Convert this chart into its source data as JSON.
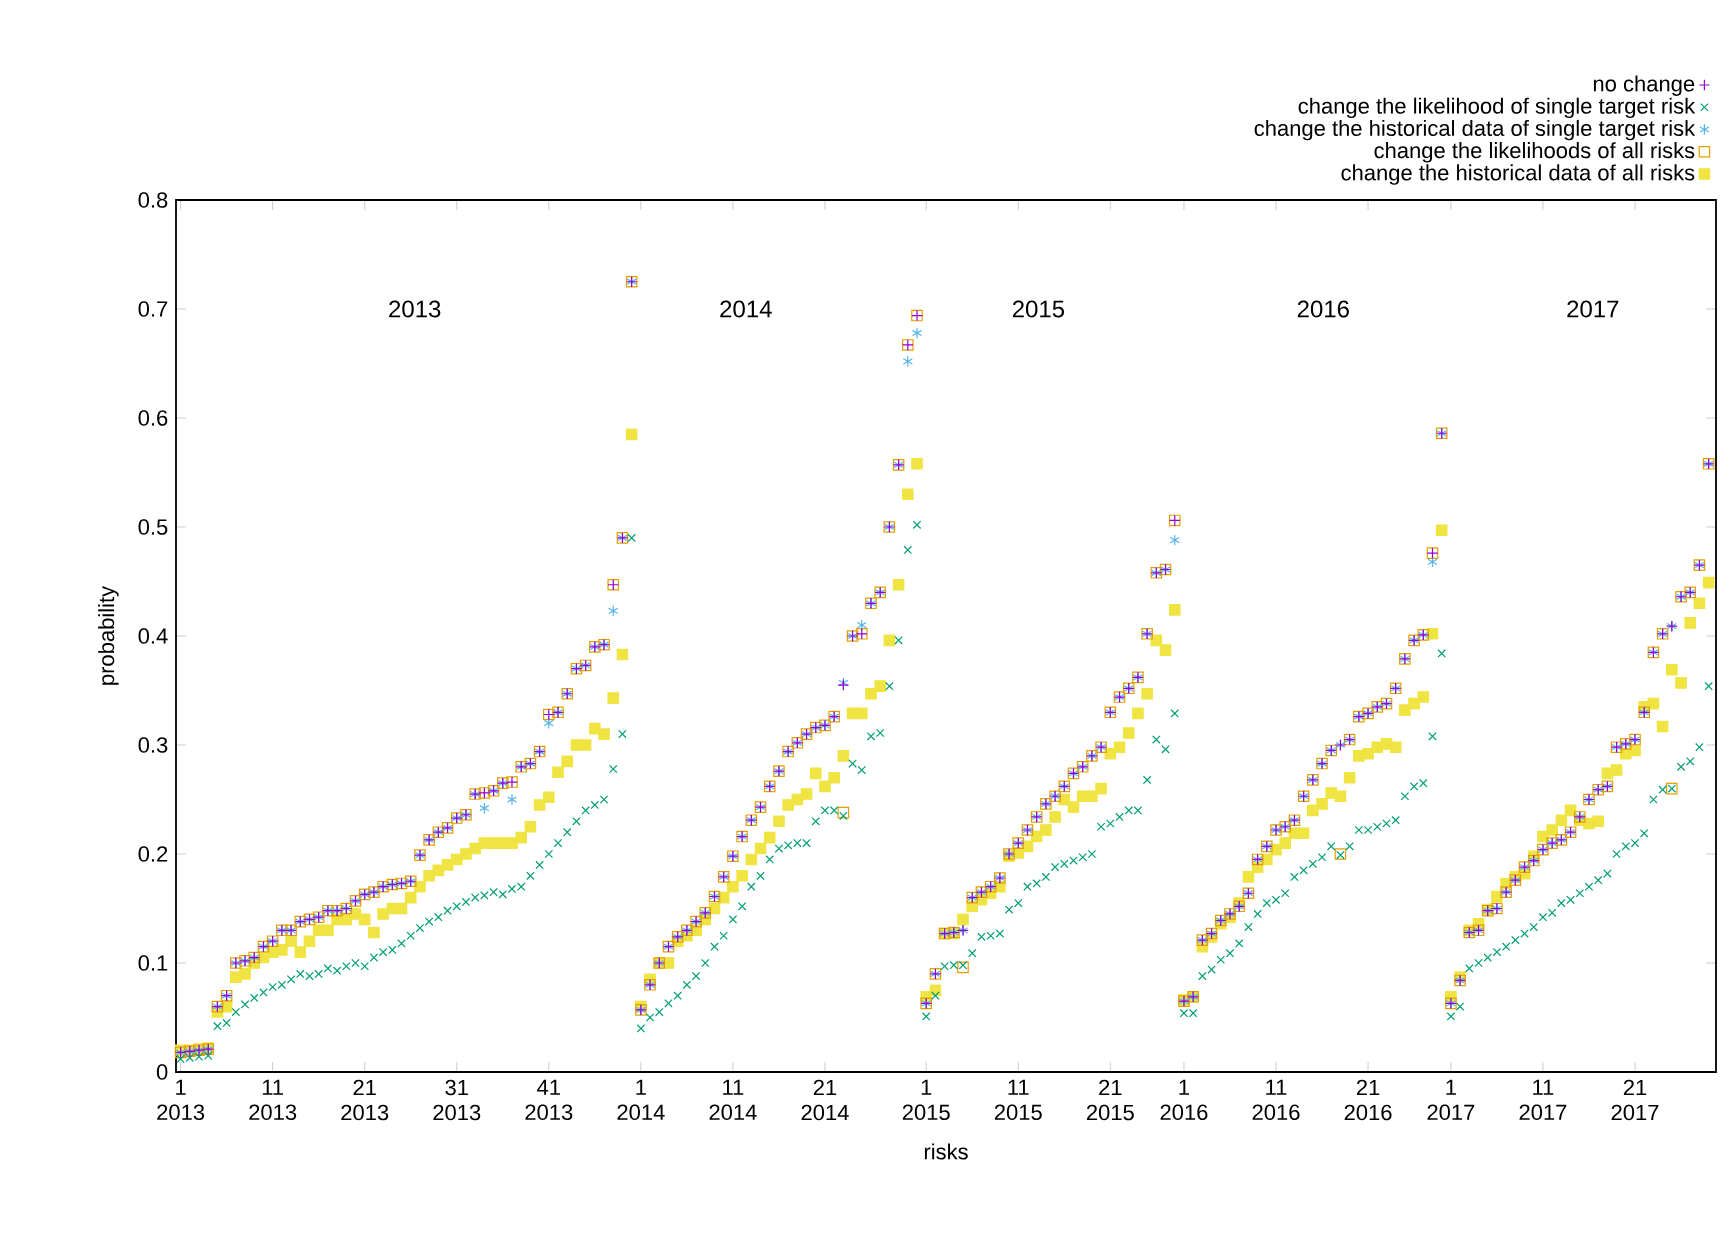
{
  "chart_data": {
    "type": "scatter",
    "xlabel": "risks",
    "ylabel": "probability",
    "ylim": [
      0,
      0.8
    ],
    "categories": [
      "1 2013",
      null,
      null,
      null,
      null,
      null,
      null,
      null,
      null,
      null,
      "11 2013",
      null,
      null,
      null,
      null,
      null,
      null,
      null,
      null,
      null,
      "21 2013",
      null,
      null,
      null,
      null,
      null,
      null,
      null,
      null,
      null,
      "31 2013",
      null,
      null,
      null,
      null,
      null,
      null,
      null,
      null,
      null,
      "41 2013",
      null,
      null,
      null,
      null,
      null,
      null,
      null,
      null,
      null,
      "1 2014",
      null,
      null,
      null,
      null,
      null,
      null,
      null,
      null,
      null,
      "11 2014",
      null,
      null,
      null,
      null,
      null,
      null,
      null,
      null,
      null,
      "21 2014",
      null,
      null,
      null,
      null,
      null,
      null,
      null,
      null,
      null,
      null,
      "1 2015",
      null,
      null,
      null,
      null,
      null,
      null,
      null,
      null,
      null,
      "11 2015",
      null,
      null,
      null,
      null,
      null,
      null,
      null,
      null,
      null,
      "21 2015",
      null,
      null,
      null,
      null,
      null,
      null,
      null,
      "1 2016",
      null,
      null,
      null,
      null,
      null,
      null,
      null,
      null,
      null,
      "11 2016",
      null,
      null,
      null,
      null,
      null,
      null,
      null,
      null,
      null,
      "21 2016",
      null,
      null,
      null,
      null,
      null,
      null,
      null,
      null,
      "1 2017",
      null,
      null,
      null,
      null,
      null,
      null,
      null,
      null,
      null,
      "11 2017",
      null,
      null,
      null,
      null,
      null,
      null,
      null,
      null,
      null,
      "21 2017",
      null,
      null,
      null,
      null,
      null,
      null,
      null,
      null
    ],
    "yticks": [
      0,
      0.1,
      0.2,
      0.3,
      0.4,
      0.5,
      0.6,
      0.7,
      0.8
    ],
    "legend": "top right",
    "annotations": [
      "2013",
      "2014",
      "2015",
      "2016",
      "2017"
    ],
    "series": [
      {
        "name": "no change",
        "color": "#9400d3",
        "marker": "plus",
        "values": [
          0.018,
          0.019,
          0.02,
          0.021,
          0.06,
          0.07,
          0.1,
          0.102,
          0.105,
          0.115,
          0.12,
          0.13,
          0.13,
          0.138,
          0.14,
          0.142,
          0.148,
          0.148,
          0.15,
          0.157,
          0.163,
          0.165,
          0.17,
          0.172,
          0.173,
          0.175,
          0.199,
          0.213,
          0.22,
          0.224,
          0.233,
          0.236,
          0.255,
          0.256,
          0.258,
          0.265,
          0.266,
          0.28,
          0.283,
          0.294,
          0.328,
          0.33,
          0.347,
          0.37,
          0.373,
          0.39,
          0.392,
          0.447,
          0.49,
          0.725,
          0.057,
          0.08,
          0.1,
          0.115,
          0.124,
          0.13,
          0.138,
          0.146,
          0.161,
          0.179,
          0.198,
          0.216,
          0.231,
          0.243,
          0.262,
          0.276,
          0.294,
          0.302,
          0.31,
          0.316,
          0.318,
          0.326,
          0.355,
          0.4,
          0.402,
          0.43,
          0.44,
          0.5,
          0.557,
          0.667,
          0.694,
          0.063,
          0.09,
          0.127,
          0.128,
          0.13,
          0.16,
          0.165,
          0.17,
          0.178,
          0.2,
          0.21,
          0.222,
          0.234,
          0.246,
          0.253,
          0.262,
          0.274,
          0.28,
          0.29,
          0.298,
          0.33,
          0.344,
          0.352,
          0.362,
          0.402,
          0.458,
          0.461,
          0.506,
          0.065,
          0.069,
          0.121,
          0.127,
          0.139,
          0.145,
          0.152,
          0.164,
          0.195,
          0.207,
          0.222,
          0.225,
          0.231,
          0.253,
          0.268,
          0.283,
          0.295,
          0.3,
          0.305,
          0.326,
          0.329,
          0.335,
          0.338,
          0.352,
          0.379,
          0.396,
          0.401,
          0.476,
          0.586,
          0.063,
          0.084,
          0.128,
          0.13,
          0.148,
          0.15,
          0.165,
          0.176,
          0.188,
          0.194,
          0.204,
          0.21,
          0.213,
          0.22,
          0.234,
          0.25,
          0.259,
          0.262,
          0.298,
          0.301,
          0.305,
          0.33,
          0.385,
          0.402,
          0.409,
          0.436,
          0.44,
          0.465,
          0.558
        ]
      },
      {
        "name": "change the likelihood of single target risk",
        "color": "#009e73",
        "marker": "cross",
        "values": [
          0.012,
          0.013,
          0.014,
          0.015,
          0.042,
          0.045,
          0.055,
          0.062,
          0.068,
          0.073,
          0.078,
          0.08,
          0.085,
          0.09,
          0.088,
          0.09,
          0.095,
          0.093,
          0.097,
          0.1,
          0.097,
          0.105,
          0.11,
          0.112,
          0.118,
          0.125,
          0.132,
          0.138,
          0.142,
          0.148,
          0.152,
          0.156,
          0.16,
          0.162,
          0.165,
          0.163,
          0.168,
          0.17,
          0.18,
          0.19,
          0.2,
          0.21,
          0.22,
          0.23,
          0.24,
          0.245,
          0.25,
          0.278,
          0.31,
          0.49,
          0.04,
          0.05,
          0.055,
          0.063,
          0.07,
          0.08,
          0.088,
          0.1,
          0.115,
          0.125,
          0.14,
          0.152,
          0.17,
          0.18,
          0.195,
          0.205,
          0.208,
          0.21,
          0.21,
          0.23,
          0.24,
          0.24,
          0.235,
          0.283,
          0.277,
          0.308,
          0.311,
          0.354,
          0.396,
          0.479,
          0.502,
          0.051,
          0.07,
          0.097,
          0.098,
          0.098,
          0.109,
          0.124,
          0.125,
          0.127,
          0.149,
          0.155,
          0.17,
          0.173,
          0.179,
          0.188,
          0.191,
          0.194,
          0.197,
          0.2,
          0.225,
          0.228,
          0.234,
          0.24,
          0.24,
          0.268,
          0.305,
          0.296,
          0.329,
          0.054,
          0.054,
          0.088,
          0.094,
          0.103,
          0.109,
          0.118,
          0.133,
          0.145,
          0.155,
          0.158,
          0.164,
          0.179,
          0.185,
          0.191,
          0.197,
          0.207,
          0.199,
          0.207,
          0.222,
          0.222,
          0.225,
          0.228,
          0.231,
          0.253,
          0.262,
          0.265,
          0.308,
          0.384,
          0.051,
          0.06,
          0.095,
          0.1,
          0.105,
          0.11,
          0.115,
          0.121,
          0.127,
          0.133,
          0.142,
          0.146,
          0.155,
          0.158,
          0.164,
          0.17,
          0.176,
          0.182,
          0.2,
          0.207,
          0.21,
          0.219,
          0.25,
          0.259,
          0.26,
          0.28,
          0.285,
          0.298,
          0.354
        ]
      },
      {
        "name": "change the historical data of single target risk",
        "color": "#56b4e9",
        "values": [
          0.018,
          0.019,
          0.02,
          0.021,
          0.06,
          0.07,
          0.1,
          0.102,
          0.105,
          0.115,
          0.12,
          0.13,
          0.13,
          0.138,
          0.14,
          0.142,
          0.148,
          0.148,
          0.15,
          0.157,
          0.163,
          0.165,
          0.17,
          0.172,
          0.173,
          0.175,
          0.199,
          0.213,
          0.22,
          0.224,
          0.233,
          0.236,
          0.255,
          0.242,
          0.258,
          0.265,
          0.25,
          0.28,
          0.283,
          0.294,
          0.32,
          0.33,
          0.347,
          0.37,
          0.373,
          0.39,
          0.392,
          0.423,
          0.49,
          0.725,
          0.057,
          0.08,
          0.1,
          0.115,
          0.124,
          0.13,
          0.138,
          0.146,
          0.161,
          0.179,
          0.198,
          0.216,
          0.231,
          0.243,
          0.262,
          0.276,
          0.294,
          0.302,
          0.31,
          0.316,
          0.318,
          0.326,
          0.357,
          0.4,
          0.41,
          0.43,
          0.44,
          0.5,
          0.557,
          0.652,
          0.678,
          0.063,
          0.09,
          0.127,
          0.128,
          0.13,
          0.16,
          0.165,
          0.17,
          0.178,
          0.2,
          0.21,
          0.222,
          0.234,
          0.246,
          0.253,
          0.262,
          0.274,
          0.28,
          0.29,
          0.298,
          0.33,
          0.344,
          0.352,
          0.362,
          0.402,
          0.458,
          0.461,
          0.488,
          0.065,
          0.069,
          0.121,
          0.127,
          0.139,
          0.145,
          0.152,
          0.164,
          0.195,
          0.207,
          0.222,
          0.225,
          0.231,
          0.253,
          0.268,
          0.283,
          0.295,
          0.3,
          0.305,
          0.326,
          0.329,
          0.335,
          0.338,
          0.352,
          0.379,
          0.396,
          0.401,
          0.468,
          0.586,
          0.063,
          0.084,
          0.128,
          0.13,
          0.148,
          0.15,
          0.165,
          0.176,
          0.188,
          0.194,
          0.204,
          0.21,
          0.213,
          0.22,
          0.234,
          0.25,
          0.259,
          0.262,
          0.298,
          0.301,
          0.305,
          0.33,
          0.385,
          0.402,
          0.409,
          0.436,
          0.44,
          0.465,
          0.558
        ]
      },
      {
        "name": "change the likelihoods of all risks",
        "color": "#e69f00",
        "marker": "square",
        "values": [
          0.018,
          0.019,
          0.02,
          0.021,
          0.06,
          0.07,
          0.1,
          0.102,
          0.105,
          0.115,
          0.12,
          0.13,
          0.13,
          0.138,
          0.14,
          0.142,
          0.148,
          0.148,
          0.15,
          0.157,
          0.163,
          0.165,
          0.17,
          0.172,
          0.173,
          0.175,
          0.199,
          0.213,
          0.22,
          0.224,
          0.233,
          0.236,
          0.255,
          0.256,
          0.258,
          0.265,
          0.266,
          0.28,
          0.283,
          0.294,
          0.328,
          0.33,
          0.347,
          0.37,
          0.373,
          0.39,
          0.392,
          0.447,
          0.49,
          0.725,
          0.057,
          0.08,
          0.1,
          0.115,
          0.124,
          0.13,
          0.138,
          0.146,
          0.161,
          0.179,
          0.198,
          0.216,
          0.231,
          0.243,
          0.262,
          0.276,
          0.294,
          0.302,
          0.31,
          0.316,
          0.318,
          0.326,
          0.238,
          0.4,
          0.402,
          0.43,
          0.44,
          0.5,
          0.557,
          0.667,
          0.694,
          0.063,
          0.09,
          0.127,
          0.128,
          0.096,
          0.16,
          0.165,
          0.17,
          0.178,
          0.2,
          0.21,
          0.222,
          0.234,
          0.246,
          0.253,
          0.262,
          0.274,
          0.28,
          0.29,
          0.298,
          0.33,
          0.344,
          0.352,
          0.362,
          0.402,
          0.458,
          0.461,
          0.506,
          0.065,
          0.069,
          0.121,
          0.127,
          0.139,
          0.145,
          0.152,
          0.164,
          0.195,
          0.207,
          0.222,
          0.225,
          0.231,
          0.253,
          0.268,
          0.283,
          0.295,
          0.2,
          0.305,
          0.326,
          0.329,
          0.335,
          0.338,
          0.352,
          0.379,
          0.396,
          0.401,
          0.476,
          0.586,
          0.063,
          0.084,
          0.128,
          0.13,
          0.148,
          0.15,
          0.165,
          0.176,
          0.188,
          0.194,
          0.204,
          0.21,
          0.213,
          0.22,
          0.234,
          0.25,
          0.259,
          0.262,
          0.298,
          0.301,
          0.305,
          0.33,
          0.385,
          0.402,
          0.26,
          0.436,
          0.44,
          0.465,
          0.558
        ]
      },
      {
        "name": "change the historical data of all risks",
        "color": "#f0e442",
        "marker": "square filled",
        "values": [
          0.02,
          0.02,
          0.021,
          0.022,
          0.055,
          0.06,
          0.087,
          0.09,
          0.1,
          0.105,
          0.11,
          0.112,
          0.12,
          0.11,
          0.12,
          0.13,
          0.13,
          0.14,
          0.14,
          0.145,
          0.14,
          0.128,
          0.145,
          0.15,
          0.15,
          0.16,
          0.17,
          0.18,
          0.185,
          0.19,
          0.195,
          0.2,
          0.205,
          0.21,
          0.21,
          0.21,
          0.21,
          0.215,
          0.225,
          0.245,
          0.252,
          0.275,
          0.285,
          0.3,
          0.3,
          0.315,
          0.31,
          0.343,
          0.383,
          0.585,
          0.06,
          0.085,
          0.1,
          0.1,
          0.12,
          0.125,
          0.13,
          0.14,
          0.15,
          0.16,
          0.17,
          0.18,
          0.195,
          0.205,
          0.215,
          0.23,
          0.245,
          0.25,
          0.255,
          0.274,
          0.262,
          0.27,
          0.29,
          0.329,
          0.329,
          0.347,
          0.354,
          0.396,
          0.447,
          0.53,
          0.558,
          0.069,
          0.075,
          0.127,
          0.127,
          0.14,
          0.152,
          0.158,
          0.164,
          0.17,
          0.198,
          0.201,
          0.207,
          0.216,
          0.222,
          0.234,
          0.25,
          0.243,
          0.253,
          0.253,
          0.26,
          0.292,
          0.298,
          0.311,
          0.329,
          0.347,
          0.396,
          0.387,
          0.424,
          0.066,
          0.069,
          0.115,
          0.124,
          0.136,
          0.142,
          0.155,
          0.179,
          0.188,
          0.195,
          0.204,
          0.21,
          0.219,
          0.219,
          0.24,
          0.246,
          0.256,
          0.253,
          0.27,
          0.29,
          0.292,
          0.298,
          0.301,
          0.298,
          0.332,
          0.338,
          0.344,
          0.402,
          0.497,
          0.069,
          0.087,
          0.13,
          0.136,
          0.149,
          0.161,
          0.173,
          0.179,
          0.182,
          0.198,
          0.216,
          0.222,
          0.231,
          0.24,
          0.231,
          0.228,
          0.23,
          0.274,
          0.277,
          0.292,
          0.295,
          0.335,
          0.338,
          0.317,
          0.369,
          0.357,
          0.412,
          0.43,
          0.449
        ]
      }
    ]
  }
}
